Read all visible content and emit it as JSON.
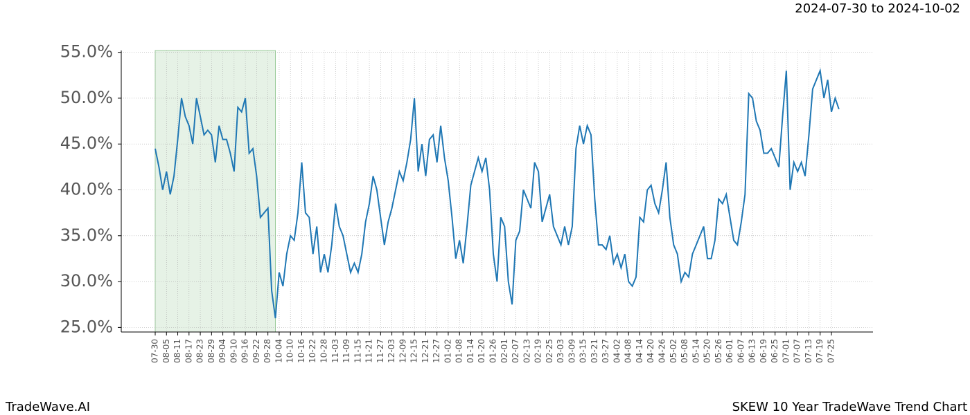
{
  "chart_data": {
    "type": "line",
    "subtitle": "2024-07-30 to 2024-10-02",
    "brand": "TradeWave.AI",
    "title": "SKEW 10 Year TradeWave Trend Chart",
    "highlight_range": [
      0,
      32
    ],
    "highlight_color": "#e6f2e6",
    "color": "#1f77b4",
    "grid": true,
    "ylim": [
      24.5,
      55.2
    ],
    "yticks": [
      {
        "value": 25,
        "label": "25.0%"
      },
      {
        "value": 30,
        "label": "30.0%"
      },
      {
        "value": 35,
        "label": "35.0%"
      },
      {
        "value": 40,
        "label": "40.0%"
      },
      {
        "value": 45,
        "label": "45.0%"
      },
      {
        "value": 50,
        "label": "50.0%"
      },
      {
        "value": 55,
        "label": "55.0%"
      }
    ],
    "categories": [
      "07-30",
      null,
      null,
      "08-05",
      null,
      null,
      "08-11",
      null,
      null,
      "08-17",
      null,
      null,
      "08-23",
      null,
      null,
      "08-29",
      null,
      null,
      "09-04",
      null,
      null,
      "09-10",
      null,
      null,
      "09-16",
      null,
      null,
      "09-22",
      null,
      null,
      "09-28",
      null,
      null,
      "10-04",
      null,
      null,
      "10-10",
      null,
      null,
      "10-16",
      null,
      null,
      "10-22",
      null,
      null,
      "10-28",
      null,
      null,
      "11-03",
      null,
      null,
      "11-09",
      null,
      null,
      "11-15",
      null,
      null,
      "11-21",
      null,
      null,
      "11-27",
      null,
      null,
      "12-03",
      null,
      null,
      "12-09",
      null,
      null,
      "12-15",
      null,
      null,
      "12-21",
      null,
      null,
      "12-27",
      null,
      null,
      "01-02",
      null,
      null,
      "01-08",
      null,
      null,
      "01-14",
      null,
      null,
      "01-20",
      null,
      null,
      "01-26",
      null,
      null,
      "02-01",
      null,
      null,
      "02-07",
      null,
      null,
      "02-13",
      null,
      null,
      "02-19",
      null,
      null,
      "02-25",
      null,
      null,
      "03-03",
      null,
      null,
      "03-09",
      null,
      null,
      "03-15",
      null,
      null,
      "03-21",
      null,
      null,
      "03-27",
      null,
      null,
      "04-02",
      null,
      null,
      "04-08",
      null,
      null,
      "04-14",
      null,
      null,
      "04-20",
      null,
      null,
      "04-26",
      null,
      null,
      "05-02",
      null,
      null,
      "05-08",
      null,
      null,
      "05-14",
      null,
      null,
      "05-20",
      null,
      null,
      "05-26",
      null,
      null,
      "06-01",
      null,
      null,
      "06-07",
      null,
      null,
      "06-13",
      null,
      null,
      "06-19",
      null,
      null,
      "06-25",
      null,
      null,
      "07-01",
      null,
      null,
      "07-07",
      null,
      null,
      "07-13",
      null,
      null,
      "07-19",
      null,
      null,
      "07-25",
      null,
      null
    ],
    "values": [
      44.5,
      42.5,
      40,
      42,
      39.5,
      41.5,
      45.5,
      50,
      48,
      47,
      45,
      50,
      48,
      46,
      46.5,
      46,
      43,
      47,
      45.5,
      45.5,
      44,
      42,
      49,
      48.5,
      50,
      44,
      44.5,
      41.5,
      37,
      37.5,
      38,
      29,
      26,
      31,
      29.5,
      33,
      35,
      34.5,
      37.5,
      43,
      37.5,
      37,
      33,
      36,
      31,
      33,
      31,
      34,
      38.5,
      36,
      35,
      33,
      31,
      32,
      31,
      33,
      36.5,
      38.5,
      41.5,
      40,
      37,
      34,
      36.5,
      38,
      40,
      42,
      41,
      43,
      45.5,
      50,
      42,
      45,
      41.5,
      45.5,
      46,
      43,
      47,
      43.5,
      41,
      37,
      32.5,
      34.5,
      32,
      36,
      40.5,
      42,
      43.5,
      42,
      43.5,
      40,
      33,
      30,
      37,
      36,
      30,
      27.5,
      34.5,
      35.5,
      40,
      39,
      38,
      43,
      42,
      36.5,
      38,
      39.5,
      36,
      35,
      34,
      36,
      34,
      36,
      44.5,
      47,
      45,
      47,
      46,
      39,
      34,
      34,
      33.5,
      35,
      32,
      33,
      31.5,
      33,
      30,
      29.5,
      30.5,
      37,
      36.5,
      40,
      40.5,
      38.5,
      37.5,
      40,
      43,
      37,
      34,
      33,
      30,
      31,
      30.5,
      33,
      34,
      35,
      36,
      32.5,
      32.5,
      34.5,
      39,
      38.5,
      39.5,
      37,
      34.5,
      34,
      36.5,
      39.5,
      50.5,
      50,
      47.5,
      46.5,
      44,
      44,
      44.5,
      43.5,
      42.5,
      48,
      53,
      40,
      43,
      42,
      43,
      41.5,
      46,
      51,
      52,
      53,
      50,
      52,
      48.5,
      50,
      48.8
    ]
  }
}
